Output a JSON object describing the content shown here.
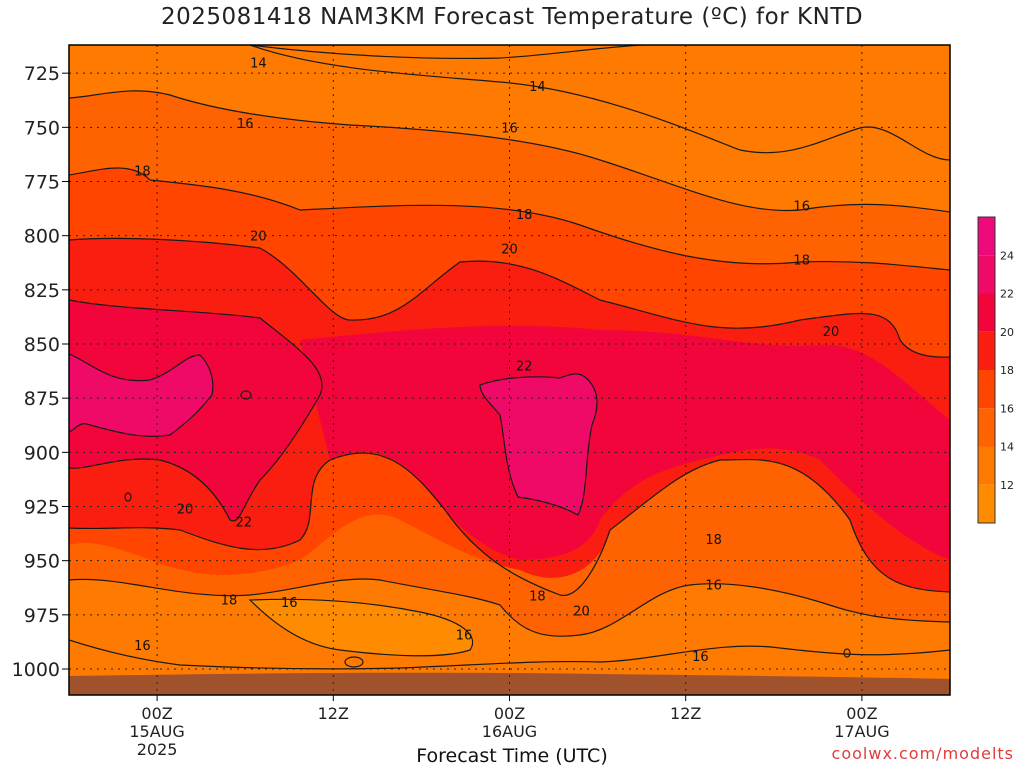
{
  "title": "2025081418 NAM3KM Forecast Temperature (ºC) for KNTD",
  "xlabel": "Forecast Time (UTC)",
  "credit": "coolwx.com/modelts",
  "chart_data": {
    "type": "heatmap",
    "title": "2025081418 NAM3KM Forecast Temperature (ºC) for KNTD",
    "xlabel": "Forecast Time (UTC)",
    "ylabel": "",
    "y_axis": {
      "scale": "pressure (hPa), inverted",
      "ticks": [
        725,
        750,
        775,
        800,
        825,
        850,
        875,
        900,
        925,
        950,
        975,
        1000
      ],
      "ylim": [
        1012,
        712
      ]
    },
    "x_axis": {
      "ticks": [
        {
          "hours": 6,
          "lines": [
            "00Z",
            "15AUG",
            "2025"
          ]
        },
        {
          "hours": 18,
          "lines": [
            "12Z"
          ]
        },
        {
          "hours": 30,
          "lines": [
            "00Z",
            "16AUG"
          ]
        },
        {
          "hours": 42,
          "lines": [
            "12Z"
          ]
        },
        {
          "hours": 54,
          "lines": [
            "00Z",
            "17AUG"
          ]
        }
      ],
      "xlim": [
        0,
        60
      ]
    },
    "grid": true,
    "colorbar": {
      "labels": [
        "12",
        "14",
        "16",
        "18",
        "20",
        "22",
        "24"
      ],
      "colors": [
        "#ff8c00",
        "#ff7a00",
        "#ff6200",
        "#ff4500",
        "#f91e0f",
        "#f2053a",
        "#f00a67",
        "#ee0a7d"
      ]
    },
    "contour_labels": [
      {
        "text": "14",
        "x": 12.9,
        "p": 720
      },
      {
        "text": "14",
        "x": 31.9,
        "p": 731
      },
      {
        "text": "16",
        "x": 12.0,
        "p": 748
      },
      {
        "text": "16",
        "x": 30.0,
        "p": 750
      },
      {
        "text": "16",
        "x": 49.9,
        "p": 786
      },
      {
        "text": "18",
        "x": 5.0,
        "p": 770
      },
      {
        "text": "18",
        "x": 31.0,
        "p": 790
      },
      {
        "text": "18",
        "x": 49.9,
        "p": 811
      },
      {
        "text": "20",
        "x": 12.9,
        "p": 800
      },
      {
        "text": "20",
        "x": 30.0,
        "p": 806
      },
      {
        "text": "20",
        "x": 51.9,
        "p": 844
      },
      {
        "text": "22",
        "x": 31.0,
        "p": 860
      },
      {
        "text": "20",
        "x": 7.9,
        "p": 926
      },
      {
        "text": "22",
        "x": 11.9,
        "p": 932
      },
      {
        "text": "18",
        "x": 10.9,
        "p": 968
      },
      {
        "text": "16",
        "x": 15.0,
        "p": 969
      },
      {
        "text": "16",
        "x": 26.9,
        "p": 984
      },
      {
        "text": "18",
        "x": 31.9,
        "p": 966
      },
      {
        "text": "20",
        "x": 34.9,
        "p": 973
      },
      {
        "text": "18",
        "x": 43.9,
        "p": 940
      },
      {
        "text": "16",
        "x": 43.9,
        "p": 961
      },
      {
        "text": "16",
        "x": 43.0,
        "p": 994
      },
      {
        "text": "16",
        "x": 5.0,
        "p": 989
      }
    ]
  }
}
